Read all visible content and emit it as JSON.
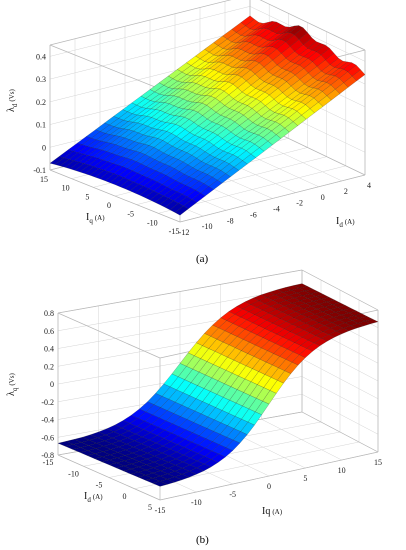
{
  "chart_data": [
    {
      "type": "surface",
      "caption": "(a)",
      "z_label": "λ",
      "z_sub": "d",
      "z_unit": "(Vs)",
      "x_label": "I",
      "x_sub": "q",
      "x_unit": "(A)",
      "y_label": "I",
      "y_sub": "d",
      "y_unit": "(A)",
      "z_ticks": [
        "0.4",
        "0.3",
        "0.2",
        "0.1",
        "0",
        "-0.1"
      ],
      "x_ticks": [
        "15",
        "10",
        "5",
        "0",
        "-5",
        "-10",
        "-15"
      ],
      "y_ticks": [
        "-12",
        "-10",
        "-8",
        "-6",
        "-4",
        "-2",
        "0",
        "2",
        "4"
      ],
      "x_range": [
        -15,
        15
      ],
      "y_range": [
        -12,
        4
      ],
      "z_range": [
        -0.1,
        0.45
      ],
      "surface": "λd rises roughly linearly with Id from about -0.05 Vs at Id=-12 A to about 0.38 Vs at Id=4 A, with a small hump near Iq=0 and slightly lower values at high |Iq|",
      "colormap": "jet"
    },
    {
      "type": "surface",
      "caption": "(b)",
      "z_label": "λ",
      "z_sub": "q",
      "z_unit": "(Vs)",
      "x_label": "I",
      "x_sub": "d",
      "x_unit": "(A)",
      "y_label": "Iq",
      "y_sub": "",
      "y_unit": "(A)",
      "z_ticks": [
        "0.8",
        "0.6",
        "0.4",
        "0.2",
        "0",
        "-0.2",
        "-0.4",
        "-0.6",
        "-0.8"
      ],
      "x_ticks": [
        "-15",
        "-10",
        "-5",
        "0",
        "5"
      ],
      "y_ticks": [
        "-15",
        "-10",
        "-5",
        "0",
        "5",
        "10",
        "15"
      ],
      "x_range": [
        -15,
        5
      ],
      "y_range": [
        -15,
        15
      ],
      "z_range": [
        -0.8,
        0.8
      ],
      "surface": "λq follows an S-shaped (saturating) curve in Iq, from about -0.65 Vs at Iq=-15 A to about 0.65 Vs at Iq=15 A, almost independent of Id",
      "colormap": "jet"
    }
  ]
}
